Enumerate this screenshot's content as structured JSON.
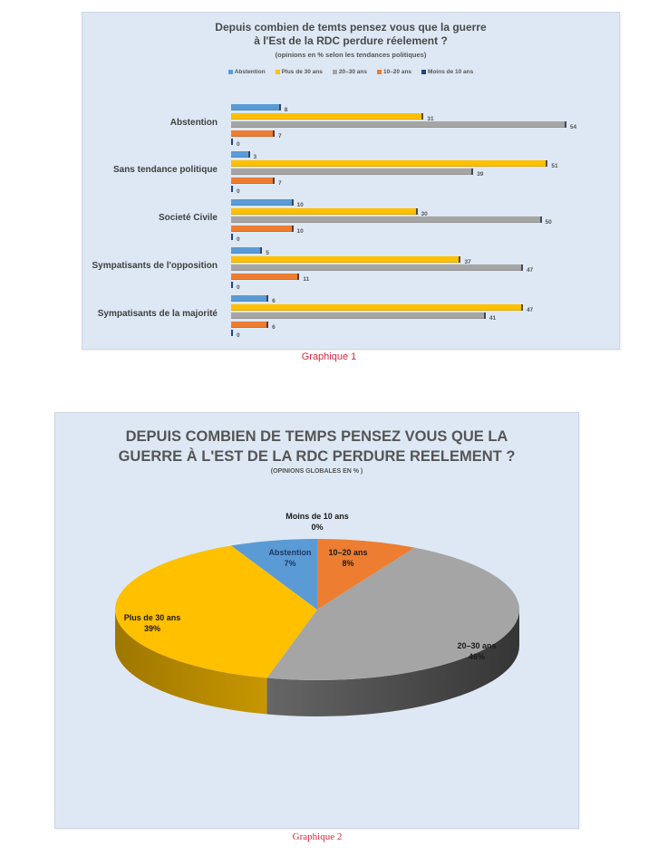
{
  "chart_data": [
    {
      "type": "bar",
      "orientation": "horizontal",
      "title": "Depuis combien de temts pensez vous que la guerre à l'Est de la RDC perdure réelement ?",
      "title_line1": "Depuis combien de temts pensez vous que la guerre",
      "title_line2": "à l'Est de la RDC perdure réelement ?",
      "subtitle": "(opinions  en % selon les tendances politiques)",
      "xlabel": "",
      "ylabel": "",
      "grid": false,
      "legend_position": "top",
      "categories": [
        "Abstention",
        "Sans tendance politique",
        "Societé Civile",
        "Sympatisants de l'opposition",
        "Sympatisants de la majorité"
      ],
      "series": [
        {
          "name": "Abstention",
          "color": "#5b9bd5",
          "values": [
            8,
            3,
            10,
            5,
            6
          ]
        },
        {
          "name": "Plus de 30 ans",
          "color": "#ffc000",
          "values": [
            31,
            51,
            30,
            37,
            47
          ]
        },
        {
          "name": "20–30 ans",
          "color": "#a5a5a5",
          "values": [
            54,
            39,
            50,
            47,
            41
          ]
        },
        {
          "name": "10–20 ans",
          "color": "#ed7d31",
          "values": [
            7,
            7,
            10,
            11,
            6
          ]
        },
        {
          "name": "Moins de 10 ans",
          "color": "#264478",
          "values": [
            0,
            0,
            0,
            0,
            0
          ]
        }
      ],
      "caption": "Graphique 1"
    },
    {
      "type": "pie",
      "style": "3d",
      "title": "DEPUIS COMBIEN DE TEMPS PENSEZ VOUS QUE LA GUERRE À L'EST DE LA RDC PERDURE REELEMENT ?",
      "title_line1": "DEPUIS COMBIEN DE TEMPS PENSEZ VOUS QUE LA",
      "title_line2": "GUERRE À L'EST DE LA RDC PERDURE REELEMENT ?",
      "subtitle": "(OPINIONS GLOBALES EN % )",
      "slices": [
        {
          "label": "Moins de 10 ans",
          "value": 0,
          "display": "0%",
          "color": "#264478"
        },
        {
          "label": "10–20 ans",
          "value": 8,
          "display": "8%",
          "color": "#ed7d31"
        },
        {
          "label": "20–30 ans",
          "value": 46,
          "display": "46%",
          "color": "#a5a5a5"
        },
        {
          "label": "Plus de 30 ans",
          "value": 39,
          "display": "39%",
          "color": "#ffc000"
        },
        {
          "label": "Abstention",
          "value": 7,
          "display": "7%",
          "color": "#5b9bd5"
        }
      ],
      "caption": "Graphique 2"
    }
  ]
}
